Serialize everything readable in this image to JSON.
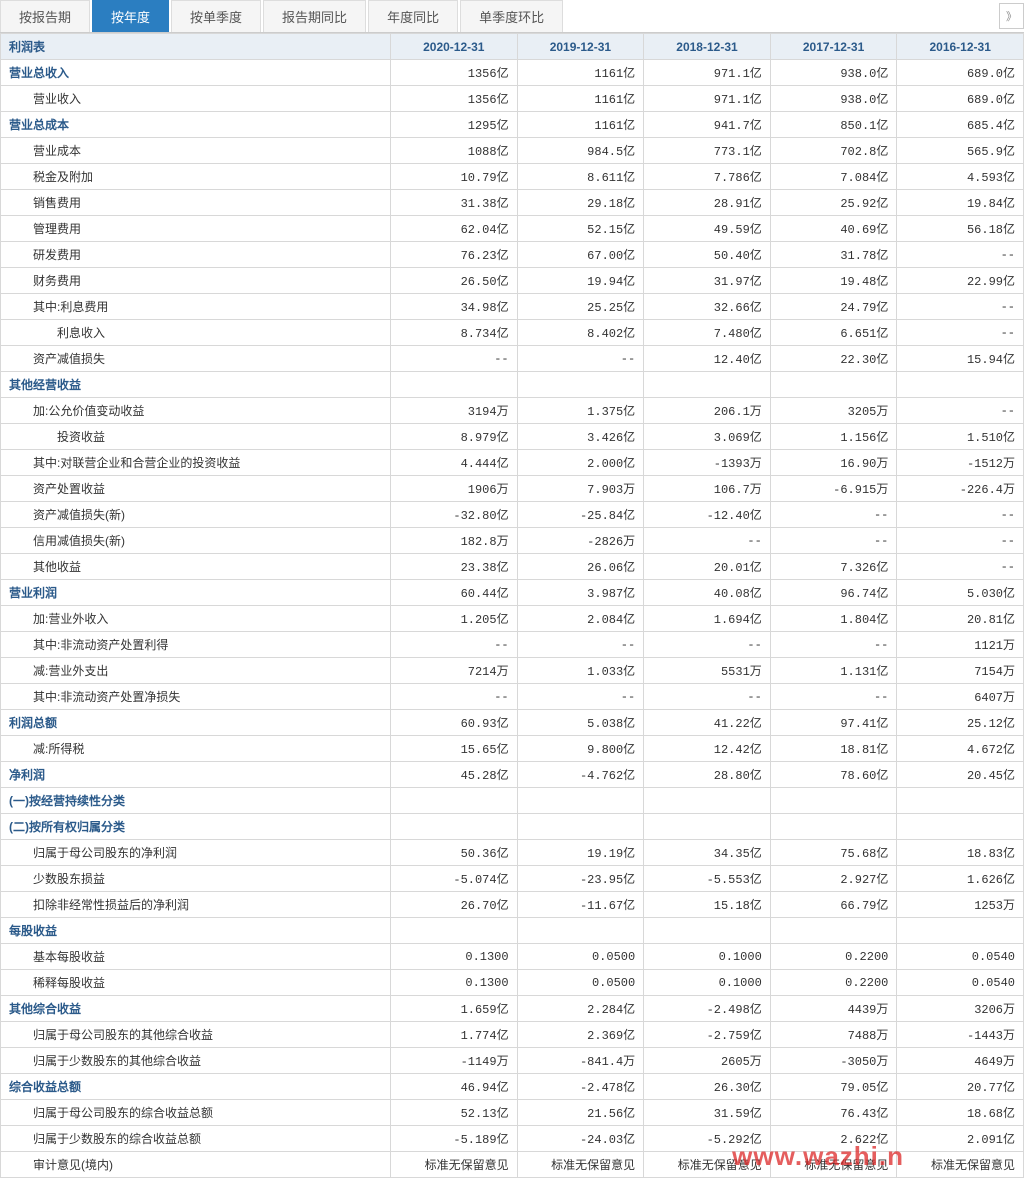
{
  "tabs": {
    "items": [
      "按报告期",
      "按年度",
      "按单季度",
      "报告期同比",
      "年度同比",
      "单季度环比"
    ],
    "active_index": 1
  },
  "header": {
    "title": "利润表",
    "cols": [
      "2020-12-31",
      "2019-12-31",
      "2018-12-31",
      "2017-12-31",
      "2016-12-31"
    ]
  },
  "rows": [
    {
      "label": "营业总收入",
      "section": true,
      "indent": 0,
      "vals": [
        "1356亿",
        "1161亿",
        "971.1亿",
        "938.0亿",
        "689.0亿"
      ]
    },
    {
      "label": "营业收入",
      "indent": 1,
      "vals": [
        "1356亿",
        "1161亿",
        "971.1亿",
        "938.0亿",
        "689.0亿"
      ]
    },
    {
      "label": "营业总成本",
      "section": true,
      "indent": 0,
      "vals": [
        "1295亿",
        "1161亿",
        "941.7亿",
        "850.1亿",
        "685.4亿"
      ]
    },
    {
      "label": "营业成本",
      "indent": 1,
      "vals": [
        "1088亿",
        "984.5亿",
        "773.1亿",
        "702.8亿",
        "565.9亿"
      ]
    },
    {
      "label": "税金及附加",
      "indent": 1,
      "vals": [
        "10.79亿",
        "8.611亿",
        "7.786亿",
        "7.084亿",
        "4.593亿"
      ]
    },
    {
      "label": "销售费用",
      "indent": 1,
      "vals": [
        "31.38亿",
        "29.18亿",
        "28.91亿",
        "25.92亿",
        "19.84亿"
      ]
    },
    {
      "label": "管理费用",
      "indent": 1,
      "vals": [
        "62.04亿",
        "52.15亿",
        "49.59亿",
        "40.69亿",
        "56.18亿"
      ]
    },
    {
      "label": "研发费用",
      "indent": 1,
      "vals": [
        "76.23亿",
        "67.00亿",
        "50.40亿",
        "31.78亿",
        "--"
      ]
    },
    {
      "label": "财务费用",
      "indent": 1,
      "vals": [
        "26.50亿",
        "19.94亿",
        "31.97亿",
        "19.48亿",
        "22.99亿"
      ]
    },
    {
      "label": "其中:利息费用",
      "indent": 1,
      "vals": [
        "34.98亿",
        "25.25亿",
        "32.66亿",
        "24.79亿",
        "--"
      ]
    },
    {
      "label": "利息收入",
      "indent": 2,
      "vals": [
        "8.734亿",
        "8.402亿",
        "7.480亿",
        "6.651亿",
        "--"
      ]
    },
    {
      "label": "资产减值损失",
      "indent": 1,
      "vals": [
        "--",
        "--",
        "12.40亿",
        "22.30亿",
        "15.94亿"
      ]
    },
    {
      "label": "其他经营收益",
      "section": true,
      "indent": 0,
      "vals": [
        "",
        "",
        "",
        "",
        ""
      ]
    },
    {
      "label": "加:公允价值变动收益",
      "indent": 1,
      "vals": [
        "3194万",
        "1.375亿",
        "206.1万",
        "3205万",
        "--"
      ]
    },
    {
      "label": "投资收益",
      "indent": 2,
      "vals": [
        "8.979亿",
        "3.426亿",
        "3.069亿",
        "1.156亿",
        "1.510亿"
      ]
    },
    {
      "label": "其中:对联营企业和合营企业的投资收益",
      "indent": 1,
      "vals": [
        "4.444亿",
        "2.000亿",
        "-1393万",
        "16.90万",
        "-1512万"
      ]
    },
    {
      "label": "资产处置收益",
      "indent": 1,
      "vals": [
        "1906万",
        "7.903万",
        "106.7万",
        "-6.915万",
        "-226.4万"
      ]
    },
    {
      "label": "资产减值损失(新)",
      "indent": 1,
      "vals": [
        "-32.80亿",
        "-25.84亿",
        "-12.40亿",
        "--",
        "--"
      ]
    },
    {
      "label": "信用减值损失(新)",
      "indent": 1,
      "vals": [
        "182.8万",
        "-2826万",
        "--",
        "--",
        "--"
      ]
    },
    {
      "label": "其他收益",
      "indent": 1,
      "vals": [
        "23.38亿",
        "26.06亿",
        "20.01亿",
        "7.326亿",
        "--"
      ]
    },
    {
      "label": "营业利润",
      "section": true,
      "indent": 0,
      "vals": [
        "60.44亿",
        "3.987亿",
        "40.08亿",
        "96.74亿",
        "5.030亿"
      ]
    },
    {
      "label": "加:营业外收入",
      "indent": 1,
      "vals": [
        "1.205亿",
        "2.084亿",
        "1.694亿",
        "1.804亿",
        "20.81亿"
      ]
    },
    {
      "label": "其中:非流动资产处置利得",
      "indent": 1,
      "vals": [
        "--",
        "--",
        "--",
        "--",
        "1121万"
      ]
    },
    {
      "label": "减:营业外支出",
      "indent": 1,
      "vals": [
        "7214万",
        "1.033亿",
        "5531万",
        "1.131亿",
        "7154万"
      ]
    },
    {
      "label": "其中:非流动资产处置净损失",
      "indent": 1,
      "vals": [
        "--",
        "--",
        "--",
        "--",
        "6407万"
      ]
    },
    {
      "label": "利润总额",
      "section": true,
      "indent": 0,
      "vals": [
        "60.93亿",
        "5.038亿",
        "41.22亿",
        "97.41亿",
        "25.12亿"
      ]
    },
    {
      "label": "减:所得税",
      "indent": 1,
      "vals": [
        "15.65亿",
        "9.800亿",
        "12.42亿",
        "18.81亿",
        "4.672亿"
      ]
    },
    {
      "label": "净利润",
      "section": true,
      "indent": 0,
      "vals": [
        "45.28亿",
        "-4.762亿",
        "28.80亿",
        "78.60亿",
        "20.45亿"
      ]
    },
    {
      "label": "(一)按经营持续性分类",
      "section": true,
      "indent": 0,
      "vals": [
        "",
        "",
        "",
        "",
        ""
      ]
    },
    {
      "label": "(二)按所有权归属分类",
      "section": true,
      "indent": 0,
      "vals": [
        "",
        "",
        "",
        "",
        ""
      ]
    },
    {
      "label": "归属于母公司股东的净利润",
      "indent": 1,
      "vals": [
        "50.36亿",
        "19.19亿",
        "34.35亿",
        "75.68亿",
        "18.83亿"
      ]
    },
    {
      "label": "少数股东损益",
      "indent": 1,
      "vals": [
        "-5.074亿",
        "-23.95亿",
        "-5.553亿",
        "2.927亿",
        "1.626亿"
      ]
    },
    {
      "label": "扣除非经常性损益后的净利润",
      "indent": 1,
      "vals": [
        "26.70亿",
        "-11.67亿",
        "15.18亿",
        "66.79亿",
        "1253万"
      ]
    },
    {
      "label": "每股收益",
      "section": true,
      "indent": 0,
      "vals": [
        "",
        "",
        "",
        "",
        ""
      ]
    },
    {
      "label": "基本每股收益",
      "indent": 1,
      "vals": [
        "0.1300",
        "0.0500",
        "0.1000",
        "0.2200",
        "0.0540"
      ]
    },
    {
      "label": "稀释每股收益",
      "indent": 1,
      "vals": [
        "0.1300",
        "0.0500",
        "0.1000",
        "0.2200",
        "0.0540"
      ]
    },
    {
      "label": "其他综合收益",
      "section": true,
      "indent": 0,
      "vals": [
        "1.659亿",
        "2.284亿",
        "-2.498亿",
        "4439万",
        "3206万"
      ]
    },
    {
      "label": "归属于母公司股东的其他综合收益",
      "indent": 1,
      "vals": [
        "1.774亿",
        "2.369亿",
        "-2.759亿",
        "7488万",
        "-1443万"
      ]
    },
    {
      "label": "归属于少数股东的其他综合收益",
      "indent": 1,
      "vals": [
        "-1149万",
        "-841.4万",
        "2605万",
        "-3050万",
        "4649万"
      ]
    },
    {
      "label": "综合收益总额",
      "section": true,
      "indent": 0,
      "vals": [
        "46.94亿",
        "-2.478亿",
        "26.30亿",
        "79.05亿",
        "20.77亿"
      ]
    },
    {
      "label": "归属于母公司股东的综合收益总额",
      "indent": 1,
      "vals": [
        "52.13亿",
        "21.56亿",
        "31.59亿",
        "76.43亿",
        "18.68亿"
      ]
    },
    {
      "label": "归属于少数股东的综合收益总额",
      "indent": 1,
      "vals": [
        "-5.189亿",
        "-24.03亿",
        "-5.292亿",
        "2.622亿",
        "2.091亿"
      ]
    },
    {
      "label": "审计意见(境内)",
      "indent": 1,
      "vals": [
        "标准无保留意见",
        "标准无保留意见",
        "标准无保留意见",
        "标准无保留意见",
        "标准无保留意见"
      ]
    }
  ],
  "watermark": "www.wazhi.n",
  "arrow": "》"
}
